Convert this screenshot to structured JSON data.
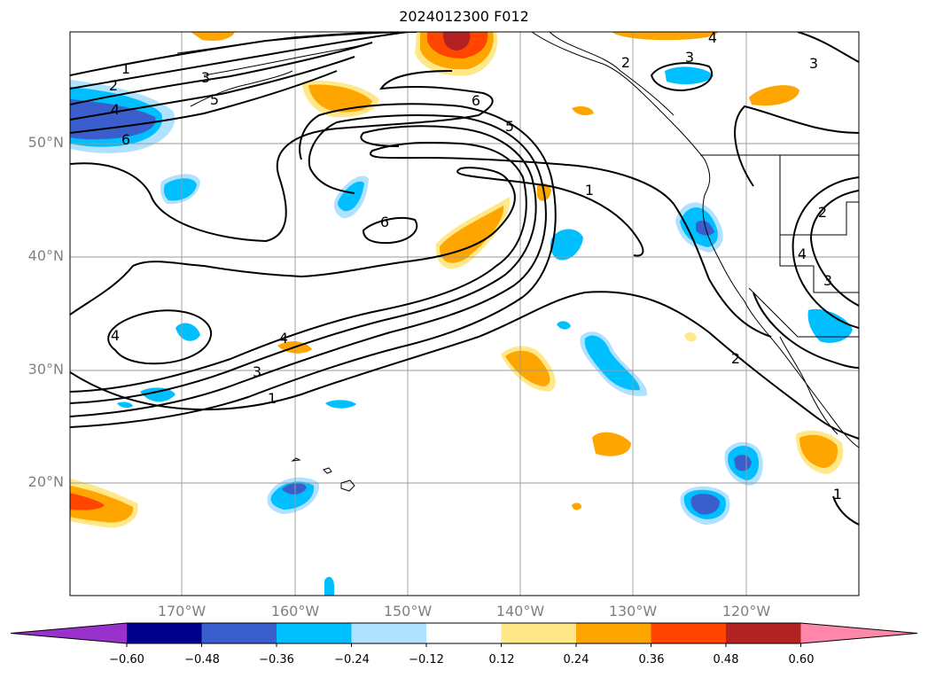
{
  "title": "2024012300 F012",
  "map": {
    "lat_labels": [
      "50°N",
      "40°N",
      "30°N",
      "20°N"
    ],
    "lon_labels": [
      "170°W",
      "160°W",
      "150°W",
      "140°W",
      "130°W",
      "120°W"
    ],
    "contour_labels": [
      "1",
      "2",
      "3",
      "4",
      "5",
      "6",
      "6",
      "5",
      "4",
      "3",
      "2",
      "1",
      "1",
      "2",
      "3",
      "4",
      "3",
      "4",
      "3",
      "1",
      "2",
      "3",
      "4",
      "6"
    ]
  },
  "colorbar": {
    "ticks": [
      "−0.60",
      "−0.48",
      "−0.36",
      "−0.24",
      "−0.12",
      "0.12",
      "0.24",
      "0.36",
      "0.48",
      "0.60"
    ],
    "colors": [
      "#9932cc",
      "#00008b",
      "#3a5fcd",
      "#00bfff",
      "#b0e2ff",
      "#ffffff",
      "#ffe88a",
      "#ffa500",
      "#ff4500",
      "#b22222",
      "#ff88aa"
    ]
  }
}
